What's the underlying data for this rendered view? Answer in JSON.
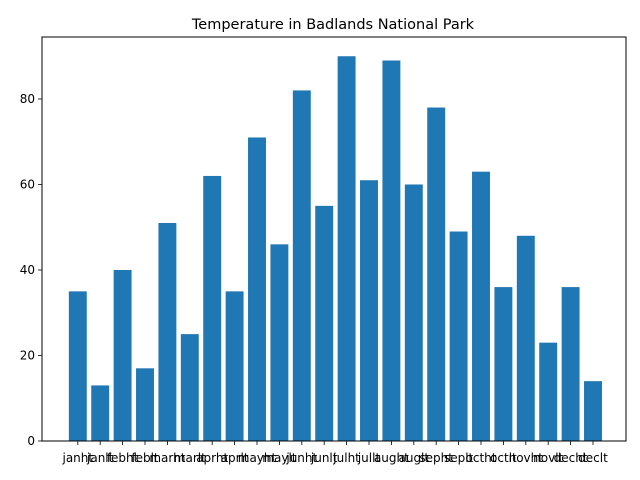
{
  "chart_data": {
    "type": "bar",
    "title": "Temperature in Badlands National Park",
    "xlabel": "",
    "ylabel": "",
    "categories": [
      "janht",
      "janlt",
      "febht",
      "feblt",
      "marht",
      "marlt",
      "aprht",
      "aprlt",
      "mayht",
      "maylt",
      "junht",
      "junlt",
      "julht",
      "jullt",
      "aught",
      "auglt",
      "sepht",
      "seplt",
      "octht",
      "octlt",
      "novht",
      "novlt",
      "decht",
      "declt"
    ],
    "values": [
      35,
      13,
      40,
      17,
      51,
      25,
      62,
      35,
      71,
      46,
      82,
      55,
      90,
      61,
      89,
      60,
      78,
      49,
      63,
      36,
      48,
      23,
      36,
      14
    ],
    "ylim": [
      0,
      94.5
    ],
    "yticks": [
      0,
      20,
      40,
      60,
      80
    ],
    "grid": false,
    "bar_color": "#1f77b4"
  }
}
